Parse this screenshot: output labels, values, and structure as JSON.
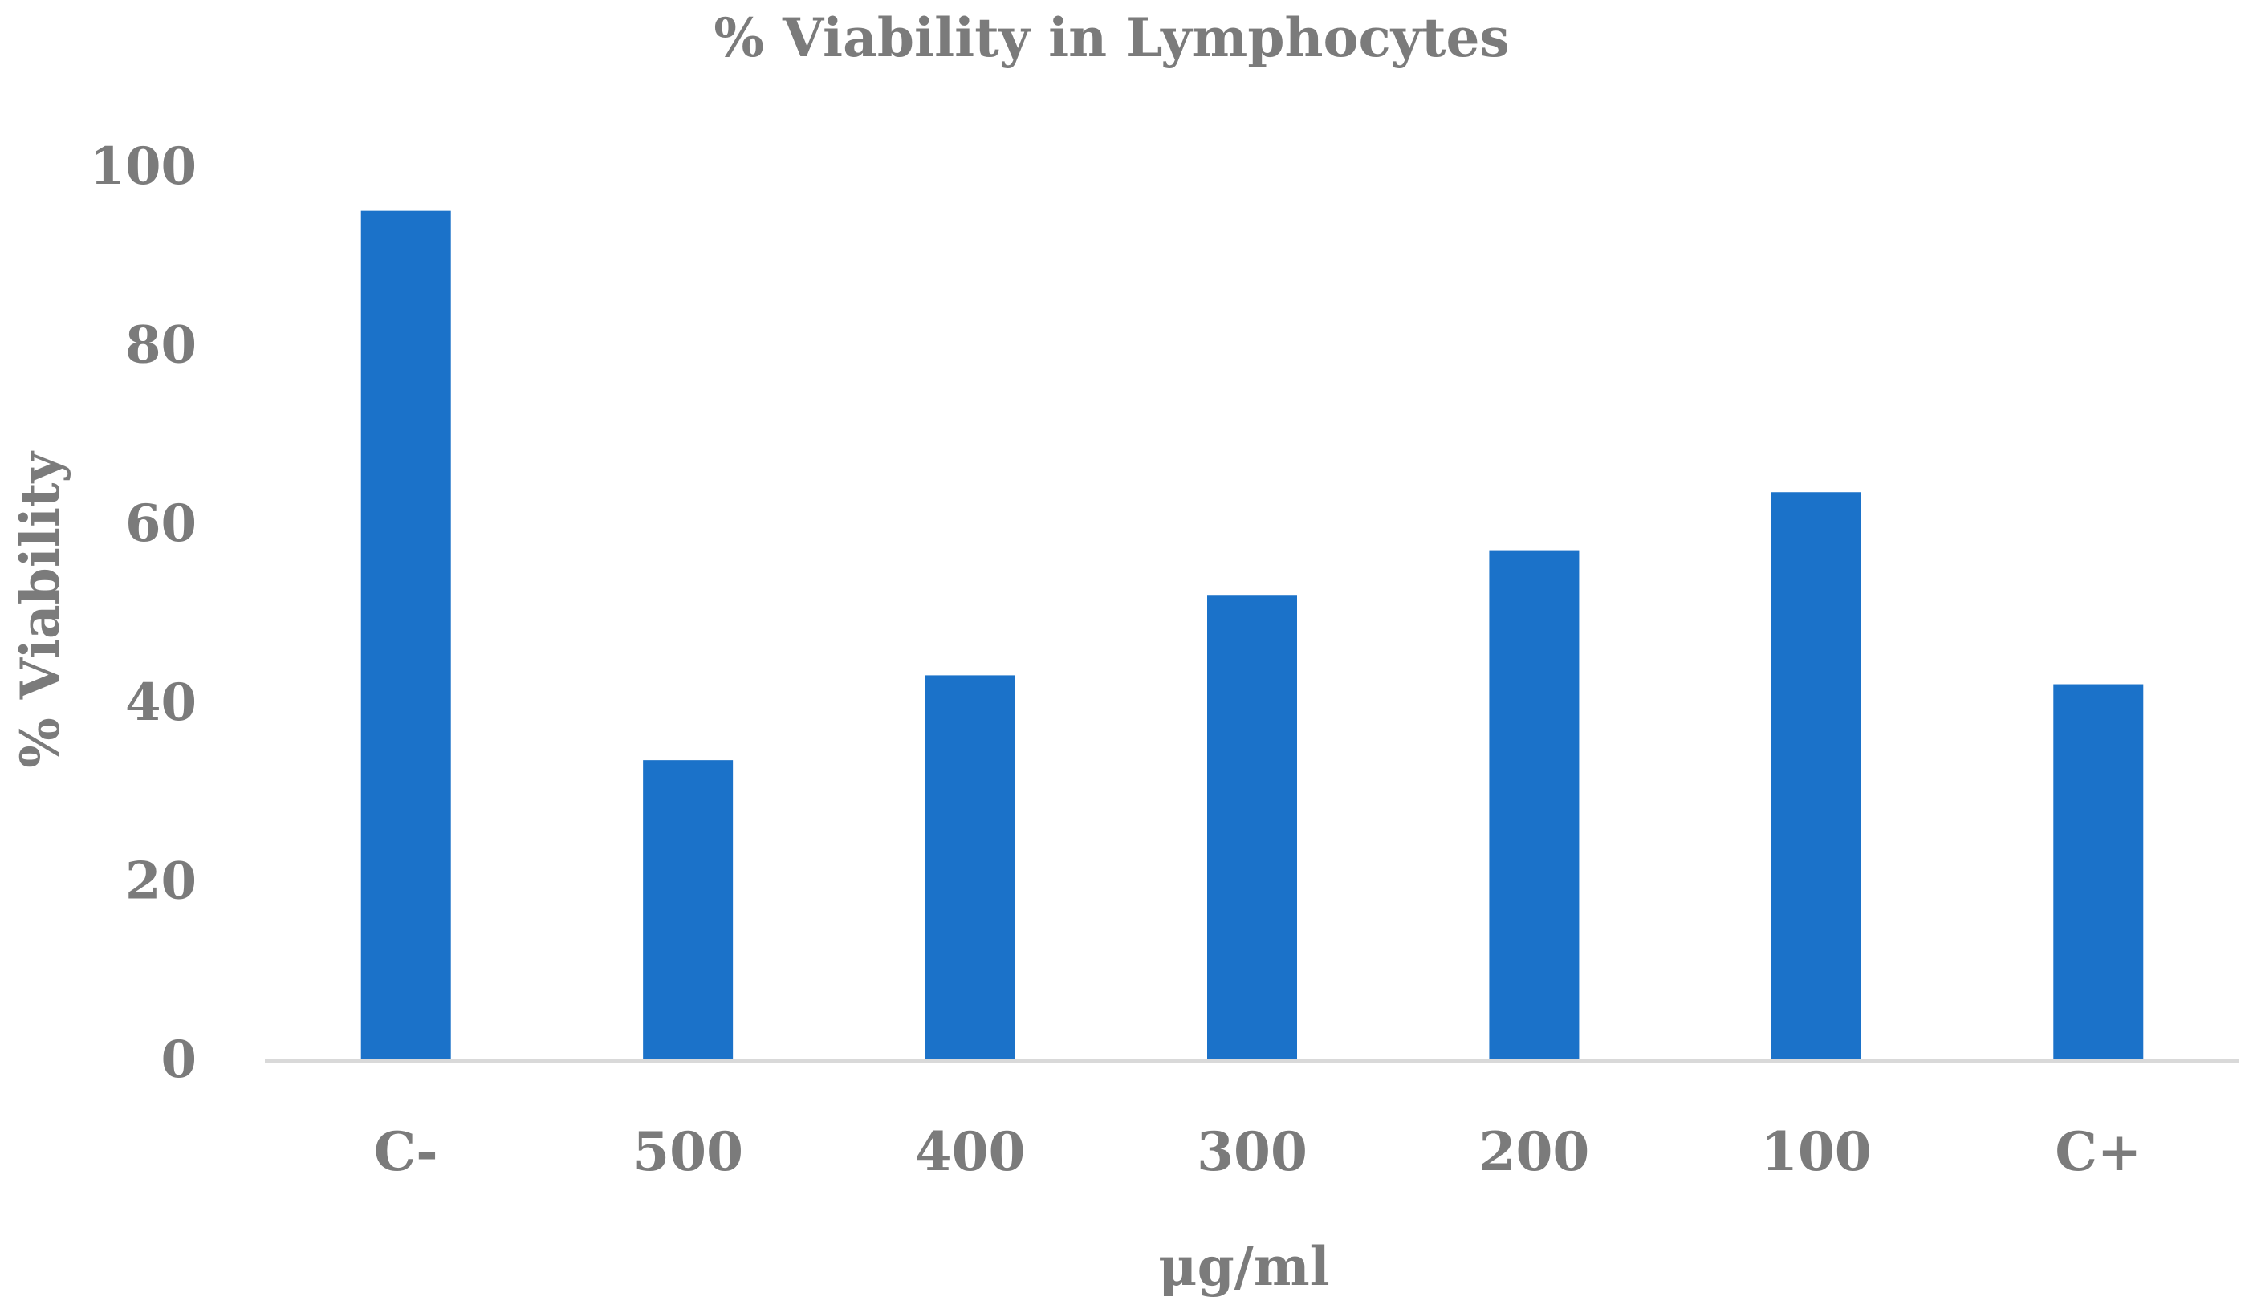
{
  "chart_data": {
    "type": "bar",
    "title": "% Viability in Lymphocytes",
    "xlabel": "μg/ml",
    "ylabel": "% Viability",
    "categories": [
      "C-",
      "500",
      "400",
      "300",
      "200",
      "100",
      "C+"
    ],
    "values": [
      95,
      33.5,
      43,
      52,
      57,
      63.5,
      42
    ],
    "ylim": [
      0,
      100
    ],
    "yticks": [
      "0",
      "20",
      "40",
      "60",
      "80",
      "100"
    ],
    "grid": false,
    "legend": "none",
    "colors": {
      "bar": "#1b72c9",
      "text": "#7b7b7b",
      "axis": "#d9d9d9"
    }
  }
}
